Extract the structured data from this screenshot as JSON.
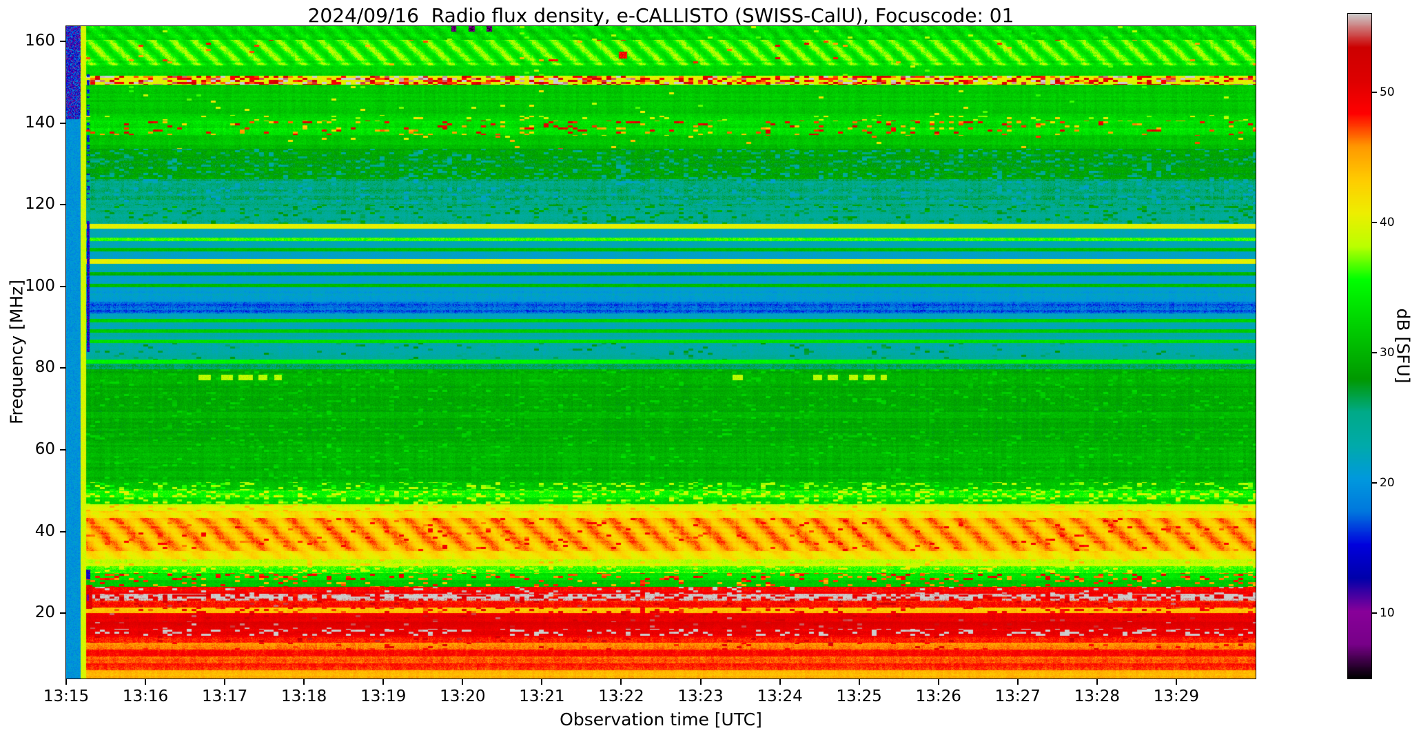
{
  "figure": {
    "title": "2024/09/16  Radio flux density, e-CALLISTO (SWISS-CalU), Focuscode: 01",
    "xlabel": "Observation time [UTC]",
    "ylabel": "Frequency [MHz]",
    "colorbar_label": "dB [SFU]"
  },
  "chart_data": {
    "type": "heatmap",
    "title": "2024/09/16  Radio flux density, e-CALLISTO (SWISS-CalU), Focuscode: 01",
    "xlabel": "Observation time [UTC]",
    "ylabel": "Frequency [MHz]",
    "x_ticks": [
      "13:15",
      "13:16",
      "13:17",
      "13:18",
      "13:19",
      "13:20",
      "13:21",
      "13:22",
      "13:23",
      "13:24",
      "13:25",
      "13:26",
      "13:27",
      "13:28",
      "13:29"
    ],
    "x_tick_interval_seconds": 60,
    "x_range_seconds": [
      0,
      900
    ],
    "y_ticks": [
      20,
      40,
      60,
      80,
      100,
      120,
      140,
      160
    ],
    "y_range_mhz": [
      4.0,
      163.7
    ],
    "grid": false,
    "colorbar": {
      "label": "dB [SFU]",
      "ticks": [
        10,
        20,
        30,
        40,
        50
      ],
      "vmin": 5,
      "vmax": 56,
      "position": "right",
      "colormap": [
        [
          0.0,
          "#000000"
        ],
        [
          0.05,
          "#770088"
        ],
        [
          0.1,
          "#880099"
        ],
        [
          0.15,
          "#0000AA"
        ],
        [
          0.2,
          "#0000DD"
        ],
        [
          0.25,
          "#0077DD"
        ],
        [
          0.3,
          "#0099DD"
        ],
        [
          0.35,
          "#00AAAA"
        ],
        [
          0.4,
          "#00AA88"
        ],
        [
          0.45,
          "#009900"
        ],
        [
          0.5,
          "#00BB00"
        ],
        [
          0.55,
          "#00DD00"
        ],
        [
          0.6,
          "#00FF00"
        ],
        [
          0.65,
          "#BBFF00"
        ],
        [
          0.7,
          "#EEEE00"
        ],
        [
          0.75,
          "#FFCC00"
        ],
        [
          0.8,
          "#FF9900"
        ],
        [
          0.85,
          "#FF0000"
        ],
        [
          0.9,
          "#DD0000"
        ],
        [
          0.95,
          "#CC0000"
        ],
        [
          1.0,
          "#CCCCCC"
        ]
      ]
    },
    "bands": [
      {
        "fhi": 163.7,
        "flo": 160.3,
        "db": 33.0,
        "px": 1.5,
        "row": 0.8,
        "col": 0.5,
        "wave": [
          1.5,
          14,
          4
        ],
        "spk": [
          0.02,
          37,
          2
        ]
      },
      {
        "fhi": 160.3,
        "flo": 154.1,
        "db": 35.0,
        "px": 1.2,
        "row": 1.0,
        "col": 0.5,
        "wave": [
          2.6,
          16,
          5
        ],
        "spk": [
          0.012,
          47,
          3
        ]
      },
      {
        "fhi": 154.1,
        "flo": 151.6,
        "db": 32.5,
        "px": 1.2,
        "row": 0.8,
        "col": 0.4,
        "spk": [
          0.01,
          38,
          2
        ]
      },
      {
        "fhi": 151.6,
        "flo": 149.4,
        "db": 40.0,
        "px": 1.5,
        "row": 0.5,
        "col": 0.5,
        "spk": [
          0.5,
          52,
          6
        ]
      },
      {
        "fhi": 149.4,
        "flo": 141.8,
        "db": 31.5,
        "px": 1.2,
        "row": 0.8,
        "col": 0.5,
        "spk": [
          0.008,
          39,
          3
        ]
      },
      {
        "fhi": 141.8,
        "flo": 140.6,
        "db": 32.5,
        "px": 1.2,
        "row": 0.6,
        "col": 0.5,
        "spk": [
          0.06,
          40,
          3
        ]
      },
      {
        "fhi": 140.6,
        "flo": 137.1,
        "db": 33.5,
        "px": 1.5,
        "row": 0.8,
        "col": 0.6,
        "spk": [
          0.13,
          47,
          5
        ]
      },
      {
        "fhi": 137.1,
        "flo": 133.7,
        "db": 31.0,
        "px": 1.2,
        "row": 0.8,
        "col": 0.5,
        "spk": [
          0.02,
          44,
          4
        ]
      },
      {
        "fhi": 133.7,
        "flo": 126.3,
        "db": 28.5,
        "px": 1.4,
        "row": 1.0,
        "col": 0.6,
        "spk": [
          0.18,
          25,
          2
        ]
      },
      {
        "fhi": 126.3,
        "flo": 120.0,
        "db": 25.5,
        "px": 1.2,
        "row": 0.8,
        "col": 0.5,
        "spk": [
          0.2,
          23,
          2
        ]
      },
      {
        "fhi": 120.0,
        "flo": 115.3,
        "db": 24.5,
        "px": 1.2,
        "row": 0.8,
        "col": 0.5,
        "spk": [
          0.15,
          28,
          2
        ]
      },
      {
        "fhi": 115.3,
        "flo": 114.1,
        "db": 40.5,
        "px": 0.8,
        "row": 0.5,
        "col": 0.3
      },
      {
        "fhi": 114.1,
        "flo": 111.9,
        "db": 22.5,
        "px": 0.8,
        "row": 0.6,
        "col": 0.3
      },
      {
        "fhi": 111.9,
        "flo": 111.1,
        "db": 36.0,
        "px": 0.8,
        "row": 0.5,
        "col": 0.3
      },
      {
        "fhi": 111.1,
        "flo": 109.4,
        "db": 22.5,
        "px": 0.8,
        "row": 0.6,
        "col": 0.3
      },
      {
        "fhi": 109.4,
        "flo": 108.6,
        "db": 31.0,
        "px": 0.8,
        "row": 0.5,
        "col": 0.3
      },
      {
        "fhi": 108.6,
        "flo": 106.7,
        "db": 22.0,
        "px": 0.8,
        "row": 0.6,
        "col": 0.3
      },
      {
        "fhi": 106.7,
        "flo": 105.5,
        "db": 40.5,
        "px": 0.8,
        "row": 0.5,
        "col": 0.3
      },
      {
        "fhi": 105.5,
        "flo": 103.5,
        "db": 22.0,
        "px": 0.8,
        "row": 0.6,
        "col": 0.3
      },
      {
        "fhi": 103.5,
        "flo": 102.6,
        "db": 30.0,
        "px": 0.8,
        "row": 0.5,
        "col": 0.3
      },
      {
        "fhi": 102.6,
        "flo": 100.6,
        "db": 21.5,
        "px": 0.8,
        "row": 0.6,
        "col": 0.3
      },
      {
        "fhi": 100.6,
        "flo": 99.8,
        "db": 31.0,
        "px": 0.8,
        "row": 0.5,
        "col": 0.3
      },
      {
        "fhi": 99.8,
        "flo": 96.2,
        "db": 21.0,
        "px": 1.0,
        "row": 0.7,
        "col": 0.4
      },
      {
        "fhi": 96.2,
        "flo": 93.4,
        "db": 17.5,
        "px": 1.6,
        "row": 0.8,
        "col": 0.5
      },
      {
        "fhi": 93.4,
        "flo": 92.0,
        "db": 22.0,
        "px": 0.8,
        "row": 0.6,
        "col": 0.3
      },
      {
        "fhi": 92.0,
        "flo": 91.2,
        "db": 32.0,
        "px": 0.8,
        "row": 0.5,
        "col": 0.3
      },
      {
        "fhi": 91.2,
        "flo": 89.5,
        "db": 22.5,
        "px": 0.8,
        "row": 0.6,
        "col": 0.3
      },
      {
        "fhi": 89.5,
        "flo": 88.7,
        "db": 32.0,
        "px": 0.8,
        "row": 0.5,
        "col": 0.3
      },
      {
        "fhi": 88.7,
        "flo": 87.0,
        "db": 23.0,
        "px": 0.8,
        "row": 0.6,
        "col": 0.3
      },
      {
        "fhi": 87.0,
        "flo": 86.1,
        "db": 33.0,
        "px": 0.8,
        "row": 0.5,
        "col": 0.3
      },
      {
        "fhi": 86.1,
        "flo": 82.1,
        "db": 23.5,
        "px": 1.0,
        "row": 0.7,
        "col": 0.4,
        "spk": [
          0.08,
          26,
          2
        ]
      },
      {
        "fhi": 82.1,
        "flo": 81.1,
        "db": 34.5,
        "px": 0.8,
        "row": 0.5,
        "col": 0.3
      },
      {
        "fhi": 81.1,
        "flo": 79.7,
        "db": 26.0,
        "px": 1.0,
        "row": 0.6,
        "col": 0.4
      },
      {
        "fhi": 79.7,
        "flo": 62.2,
        "db": 29.5,
        "px": 1.2,
        "row": 0.9,
        "col": 0.5,
        "spk": [
          0.1,
          31.5,
          1.5
        ]
      },
      {
        "fhi": 62.2,
        "flo": 52.1,
        "db": 30.0,
        "px": 1.2,
        "row": 0.9,
        "col": 0.5,
        "spk": [
          0.08,
          32,
          1.5
        ]
      },
      {
        "fhi": 52.1,
        "flo": 50.1,
        "db": 31.5,
        "px": 1.2,
        "row": 0.7,
        "col": 0.5,
        "spk": [
          0.25,
          37,
          2
        ]
      },
      {
        "fhi": 50.1,
        "flo": 48.4,
        "db": 35.5,
        "px": 1.2,
        "row": 0.7,
        "col": 0.5,
        "spk": [
          0.3,
          38.5,
          2
        ]
      },
      {
        "fhi": 48.4,
        "flo": 46.7,
        "db": 33.0,
        "px": 1.2,
        "row": 0.7,
        "col": 0.5,
        "spk": [
          0.2,
          38,
          2
        ]
      },
      {
        "fhi": 46.7,
        "flo": 45.0,
        "db": 39.5,
        "px": 1.0,
        "row": 0.7,
        "col": 0.5,
        "spk": [
          0.15,
          43,
          2
        ]
      },
      {
        "fhi": 45.0,
        "flo": 43.3,
        "db": 42.0,
        "px": 1.0,
        "row": 0.7,
        "col": 0.5,
        "wave": [
          1.2,
          20,
          6
        ]
      },
      {
        "fhi": 43.3,
        "flo": 35.2,
        "db": 44.5,
        "px": 1.0,
        "row": 0.8,
        "col": 0.5,
        "wave": [
          2.3,
          22,
          7
        ],
        "spk": [
          0.05,
          48,
          2
        ]
      },
      {
        "fhi": 35.2,
        "flo": 33.2,
        "db": 42.0,
        "px": 1.0,
        "row": 0.7,
        "col": 0.4,
        "wave": [
          1.2,
          20,
          6
        ]
      },
      {
        "fhi": 33.2,
        "flo": 31.5,
        "db": 39.0,
        "px": 1.0,
        "row": 0.7,
        "col": 0.4,
        "spk": [
          0.05,
          43,
          2
        ]
      },
      {
        "fhi": 31.5,
        "flo": 29.8,
        "db": 36.0,
        "px": 1.2,
        "row": 0.7,
        "col": 0.4,
        "spk": [
          0.12,
          40,
          2
        ]
      },
      {
        "fhi": 29.8,
        "flo": 28.1,
        "db": 33.5,
        "px": 1.2,
        "row": 0.7,
        "col": 0.4,
        "spk": [
          0.22,
          47.5,
          3
        ]
      },
      {
        "fhi": 28.1,
        "flo": 26.4,
        "db": 31.5,
        "px": 1.2,
        "row": 0.7,
        "col": 0.4,
        "spk": [
          0.12,
          46,
          3
        ]
      },
      {
        "fhi": 26.4,
        "flo": 24.7,
        "db": 48.5,
        "px": 1.0,
        "row": 0.8,
        "col": 0.4,
        "spk": [
          0.08,
          56.3,
          1
        ]
      },
      {
        "fhi": 24.7,
        "flo": 23.0,
        "db": 56.2,
        "px": 1.2,
        "row": 0.8,
        "col": 0.4,
        "spk": [
          0.35,
          49.5,
          2
        ]
      },
      {
        "fhi": 23.0,
        "flo": 21.3,
        "db": 48.5,
        "px": 1.2,
        "row": 0.8,
        "col": 0.4,
        "spk": [
          0.08,
          53,
          2
        ]
      },
      {
        "fhi": 21.3,
        "flo": 20.0,
        "db": 44.0,
        "px": 1.2,
        "row": 0.7,
        "col": 0.4,
        "spk": [
          0.18,
          48.5,
          2
        ]
      },
      {
        "fhi": 20.0,
        "flo": 17.9,
        "db": 49.5,
        "px": 1.2,
        "row": 0.8,
        "col": 0.4,
        "spk": [
          0.06,
          53,
          2
        ]
      },
      {
        "fhi": 17.9,
        "flo": 16.2,
        "db": 51.0,
        "px": 1.0,
        "row": 0.8,
        "col": 0.4,
        "spk": [
          0.05,
          54.5,
          1.5
        ]
      },
      {
        "fhi": 16.2,
        "flo": 14.5,
        "db": 49.5,
        "px": 1.2,
        "row": 0.8,
        "col": 0.4,
        "spk": [
          0.22,
          56.5,
          1
        ]
      },
      {
        "fhi": 14.5,
        "flo": 12.8,
        "db": 48.5,
        "px": 1.0,
        "row": 0.7,
        "col": 0.4,
        "spk": [
          0.05,
          52,
          2
        ]
      },
      {
        "fhi": 12.8,
        "flo": 11.1,
        "db": 46.0,
        "px": 1.0,
        "row": 0.7,
        "col": 0.4,
        "spk": [
          0.05,
          49,
          2
        ]
      },
      {
        "fhi": 11.1,
        "flo": 9.4,
        "db": 48.0,
        "px": 1.0,
        "row": 0.7,
        "col": 0.4
      },
      {
        "fhi": 9.4,
        "flo": 7.7,
        "db": 46.5,
        "px": 1.0,
        "row": 0.7,
        "col": 0.4
      },
      {
        "fhi": 7.7,
        "flo": 6.0,
        "db": 48.0,
        "px": 1.0,
        "row": 0.7,
        "col": 0.4
      },
      {
        "fhi": 6.0,
        "flo": 4.0,
        "db": 44.5,
        "px": 1.0,
        "row": 0.7,
        "col": 0.4
      }
    ],
    "features": [
      {
        "t": [
          0,
          10.5
        ],
        "f": [
          4,
          163.7
        ],
        "db": 20,
        "n": 1.8
      },
      {
        "t": [
          0,
          10.5
        ],
        "f": [
          141,
          163.7
        ],
        "db": 14,
        "n": 7
      },
      {
        "t": [
          10.5,
          14.8
        ],
        "f": [
          4,
          163.7
        ],
        "db": 39.5,
        "n": 1.3
      },
      {
        "t": [
          14.8,
          19.5
        ],
        "f": [
          21,
          27
        ],
        "db": 51,
        "n": 3
      },
      {
        "t": [
          15,
          18
        ],
        "f": [
          28.3,
          30.6
        ],
        "db": 13,
        "n": 3
      },
      {
        "t": [
          15.2,
          17.2
        ],
        "f": [
          23,
          24.6
        ],
        "db": 9,
        "n": 2
      },
      {
        "t": [
          15.3,
          17.3
        ],
        "f": [
          84,
          116
        ],
        "db": 13,
        "n": 4
      },
      {
        "t": [
          15.3,
          17.3
        ],
        "f": [
          120,
          152
        ],
        "db": 15,
        "n": 4,
        "p": 0.35
      },
      {
        "t": [
          418,
          424
        ],
        "f": [
          155.8,
          157.4
        ],
        "db": 49,
        "n": 2
      },
      {
        "t": [
          291,
          295
        ],
        "f": [
          162.3,
          163.7
        ],
        "db": 7,
        "n": 2
      },
      {
        "t": [
          304,
          309
        ],
        "f": [
          162.3,
          163.7
        ],
        "db": 7,
        "n": 2
      },
      {
        "t": [
          318,
          322
        ],
        "f": [
          162.3,
          163.7
        ],
        "db": 7,
        "n": 2
      },
      {
        "t": [
          100,
          109
        ],
        "f": [
          77.0,
          78.4
        ],
        "db": 38.5,
        "n": 1
      },
      {
        "t": [
          117,
          126
        ],
        "f": [
          77.0,
          78.4
        ],
        "db": 38.5,
        "n": 1
      },
      {
        "t": [
          130,
          141
        ],
        "f": [
          77.0,
          78.4
        ],
        "db": 38.5,
        "n": 1
      },
      {
        "t": [
          145,
          152
        ],
        "f": [
          77.0,
          78.4
        ],
        "db": 38.5,
        "n": 1
      },
      {
        "t": [
          157,
          163
        ],
        "f": [
          77.0,
          78.4
        ],
        "db": 38.5,
        "n": 1
      },
      {
        "t": [
          504,
          512
        ],
        "f": [
          77.0,
          78.4
        ],
        "db": 38.5,
        "n": 1
      },
      {
        "t": [
          565,
          572
        ],
        "f": [
          77.0,
          78.4
        ],
        "db": 38.5,
        "n": 1
      },
      {
        "t": [
          576,
          584
        ],
        "f": [
          77.0,
          78.4
        ],
        "db": 38.5,
        "n": 1
      },
      {
        "t": [
          592,
          599
        ],
        "f": [
          77.0,
          78.4
        ],
        "db": 38.5,
        "n": 1
      },
      {
        "t": [
          603,
          612
        ],
        "f": [
          77.0,
          78.4
        ],
        "db": 38.5,
        "n": 1
      },
      {
        "t": [
          616,
          621
        ],
        "f": [
          77.0,
          78.4
        ],
        "db": 38.5,
        "n": 1
      }
    ]
  }
}
